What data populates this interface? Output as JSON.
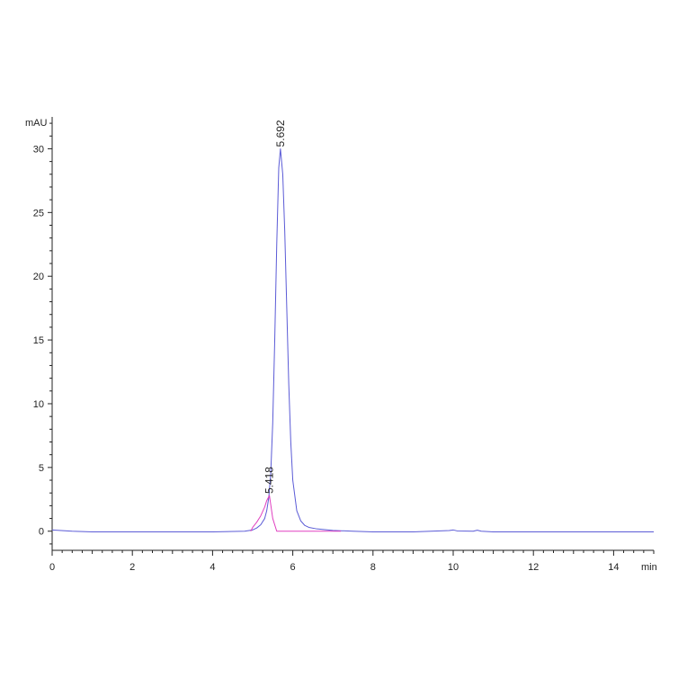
{
  "chart_data": {
    "type": "line",
    "title": "",
    "xlabel": "min",
    "ylabel": "mAU",
    "xlim": [
      0,
      15
    ],
    "ylim": [
      -1.5,
      32.5
    ],
    "x_ticks": [
      0,
      2,
      4,
      6,
      8,
      10,
      12,
      14
    ],
    "y_ticks": [
      0,
      5,
      10,
      15,
      20,
      25,
      30
    ],
    "grid": false,
    "legend": "none",
    "series": [
      {
        "color": "#5b5bd6",
        "x": [
          0.0,
          0.5,
          1.0,
          2.0,
          3.0,
          4.0,
          4.8,
          5.0,
          5.1,
          5.2,
          5.3,
          5.35,
          5.4,
          5.45,
          5.5,
          5.55,
          5.6,
          5.65,
          5.692,
          5.75,
          5.8,
          5.85,
          5.9,
          5.95,
          6.0,
          6.1,
          6.2,
          6.3,
          6.4,
          6.6,
          6.8,
          7.0,
          7.5,
          8.0,
          9.0,
          9.9,
          10.0,
          10.1,
          10.5,
          10.6,
          10.7,
          11.0,
          12.0,
          13.0,
          14.0,
          15.0
        ],
        "values": [
          0.1,
          0.0,
          -0.05,
          -0.05,
          -0.05,
          -0.05,
          0.0,
          0.1,
          0.25,
          0.5,
          1.0,
          1.6,
          2.6,
          4.5,
          8.5,
          15.0,
          22.5,
          28.5,
          30.0,
          28.0,
          23.5,
          17.5,
          11.5,
          7.0,
          4.0,
          1.6,
          0.8,
          0.45,
          0.3,
          0.18,
          0.12,
          0.06,
          0.0,
          -0.05,
          -0.05,
          0.05,
          0.1,
          0.02,
          0.0,
          0.08,
          0.0,
          -0.05,
          -0.05,
          -0.05,
          -0.05,
          -0.05
        ]
      },
      {
        "color": "#e040c0",
        "x": [
          4.95,
          5.0,
          5.1,
          5.2,
          5.3,
          5.35,
          5.418,
          5.5,
          5.6,
          5.7,
          6.0,
          6.5,
          7.0,
          7.2
        ],
        "values": [
          0.0,
          0.3,
          0.7,
          1.2,
          1.9,
          2.4,
          2.8,
          1.0,
          0.0,
          0.0,
          0.0,
          0.0,
          0.0,
          0.0
        ]
      }
    ],
    "peaks": [
      {
        "label": "5.692",
        "x": 5.692,
        "y": 30.0
      },
      {
        "label": "5.418",
        "x": 5.418,
        "y": 2.8
      }
    ]
  }
}
